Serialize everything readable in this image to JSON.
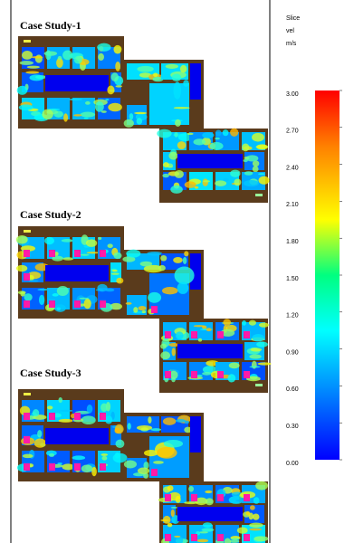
{
  "panels": [
    {
      "title": "Case Study-1"
    },
    {
      "title": "Case Study-2"
    },
    {
      "title": "Case Study-3"
    }
  ],
  "colorbar": {
    "title": [
      "Slice",
      "vel",
      "m/s"
    ],
    "ticks": [
      {
        "value": 3.0,
        "label": "3.00"
      },
      {
        "value": 2.7,
        "label": "2.70"
      },
      {
        "value": 2.4,
        "label": "2.40"
      },
      {
        "value": 2.1,
        "label": "2.10"
      },
      {
        "value": 1.8,
        "label": "1.80"
      },
      {
        "value": 1.5,
        "label": "1.50"
      },
      {
        "value": 1.2,
        "label": "1.20"
      },
      {
        "value": 0.9,
        "label": "0.90"
      },
      {
        "value": 0.6,
        "label": "0.60"
      },
      {
        "value": 0.3,
        "label": "0.30"
      },
      {
        "value": 0.0,
        "label": "0.00"
      }
    ]
  }
}
